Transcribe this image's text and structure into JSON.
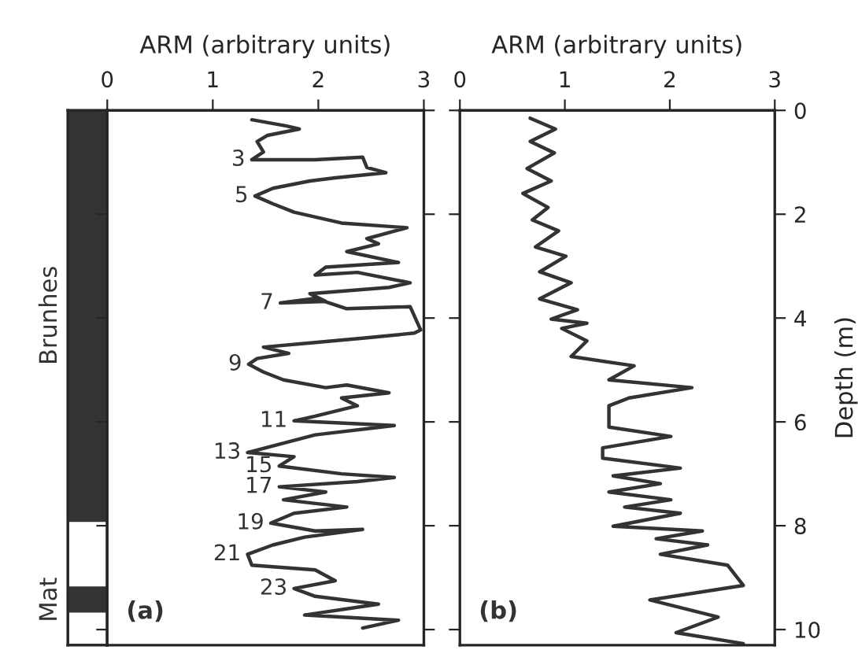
{
  "chart_data": [
    {
      "type": "bar",
      "stacked": true,
      "categories": [
        null
      ],
      "ylim": [
        10.3,
        0
      ],
      "tick_labels": false,
      "series": [
        {
          "name": "Brunhes",
          "color": "#333333",
          "values": [
            7.9
          ]
        },
        {
          "color": "#ffffff",
          "values": [
            1.3
          ]
        },
        {
          "name": "Mat",
          "color": "#333333",
          "values": [
            0.45
          ]
        },
        {
          "color": "#ffffff",
          "values": [
            0.65
          ]
        }
      ]
    },
    {
      "type": "line",
      "xlabel": "ARM (arbitrary units)",
      "xlim": [
        0,
        3
      ],
      "xticks": [
        0,
        1,
        2,
        3
      ],
      "ylim": [
        10.3,
        0
      ],
      "yticks": [
        0,
        2,
        4,
        6,
        8,
        10
      ],
      "tick_labels": "x",
      "line_style": "solid",
      "marker": "none",
      "series": [
        {
          "color": "#333333",
          "x": [
            1.37,
            1.7,
            1.82,
            1.52,
            1.42,
            1.48,
            1.37,
            1.97,
            2.42,
            2.46,
            2.64,
            2.16,
            1.92,
            1.57,
            1.4,
            1.57,
            1.77,
            2.22,
            2.84,
            2.46,
            2.57,
            2.27,
            2.76,
            2.07,
            1.97,
            2.37,
            2.87,
            2.67,
            1.92,
            2.07,
            1.64,
            1.97,
            2.27,
            2.87,
            2.97,
            2.91,
            2.46,
            1.97,
            1.48,
            1.72,
            1.42,
            1.34,
            1.48,
            1.67,
            2.07,
            2.27,
            2.67,
            2.22,
            2.37,
            1.97,
            1.77,
            2.72,
            1.97,
            1.33,
            1.77,
            1.63,
            2.22,
            2.72,
            2.37,
            1.63,
            2.07,
            1.67,
            2.27,
            1.77,
            1.55,
            1.97,
            2.42,
            1.87,
            1.57,
            1.33,
            1.37,
            1.97,
            2.16,
            1.77,
            1.97,
            2.57,
            1.87,
            2.76,
            2.42
          ],
          "values": [
            0.18,
            0.3,
            0.36,
            0.48,
            0.6,
            0.8,
            0.95,
            0.95,
            0.9,
            1.1,
            1.2,
            1.3,
            1.36,
            1.5,
            1.65,
            1.8,
            1.96,
            2.17,
            2.26,
            2.47,
            2.57,
            2.72,
            2.93,
            3.02,
            3.17,
            3.12,
            3.32,
            3.41,
            3.53,
            3.68,
            3.71,
            3.62,
            3.82,
            3.78,
            4.23,
            4.29,
            4.38,
            4.47,
            4.56,
            4.68,
            4.78,
            4.89,
            5.04,
            5.19,
            5.34,
            5.29,
            5.44,
            5.54,
            5.69,
            5.89,
            5.98,
            6.07,
            6.25,
            6.59,
            6.67,
            6.85,
            7.0,
            7.07,
            7.15,
            7.25,
            7.35,
            7.5,
            7.64,
            7.76,
            7.95,
            8.1,
            8.07,
            8.22,
            8.37,
            8.55,
            8.76,
            8.85,
            9.06,
            9.21,
            9.36,
            9.51,
            9.72,
            9.82,
            9.97
          ]
        }
      ],
      "annotations": [
        {
          "text": "3",
          "x": 1.37,
          "y": 0.95
        },
        {
          "text": "5",
          "x": 1.4,
          "y": 1.65
        },
        {
          "text": "7",
          "x": 1.64,
          "y": 3.71
        },
        {
          "text": "9",
          "x": 1.34,
          "y": 4.89
        },
        {
          "text": "11",
          "x": 1.77,
          "y": 5.98
        },
        {
          "text": "13",
          "x": 1.33,
          "y": 6.59
        },
        {
          "text": "15",
          "x": 1.63,
          "y": 6.85
        },
        {
          "text": "17",
          "x": 1.63,
          "y": 7.25
        },
        {
          "text": "19",
          "x": 1.55,
          "y": 7.95
        },
        {
          "text": "21",
          "x": 1.33,
          "y": 8.55
        },
        {
          "text": "23",
          "x": 1.77,
          "y": 9.21
        },
        "(a)"
      ]
    },
    {
      "type": "line",
      "xlabel": "ARM (arbitrary units)",
      "ylabel": "Depth (m)",
      "xlim": [
        0,
        3
      ],
      "xticks": [
        0,
        1,
        2,
        3
      ],
      "ylim": [
        10.3,
        0
      ],
      "yticks": [
        0,
        2,
        4,
        6,
        8,
        10
      ],
      "line_style": "solid",
      "marker": "none",
      "series": [
        {
          "color": "#333333",
          "x": [
            0.67,
            0.91,
            0.67,
            0.9,
            0.64,
            0.87,
            0.6,
            0.84,
            0.69,
            0.94,
            0.72,
            1.01,
            0.76,
            1.06,
            0.76,
            1.12,
            0.87,
            1.21,
            0.97,
            1.21,
            1.06,
            1.66,
            1.42,
            2.21,
            1.61,
            1.42,
            1.42,
            2.01,
            1.36,
            1.36,
            2.1,
            1.46,
            1.91,
            1.42,
            2.01,
            1.57,
            2.1,
            1.46,
            2.31,
            1.87,
            2.36,
            1.91,
            2.55,
            2.7,
            1.81,
            2.46,
            2.06,
            2.7
          ],
          "values": [
            0.15,
            0.36,
            0.6,
            0.82,
            1.12,
            1.36,
            1.6,
            1.87,
            2.11,
            2.32,
            2.63,
            2.81,
            3.11,
            3.32,
            3.63,
            3.84,
            4.02,
            4.1,
            4.2,
            4.44,
            4.74,
            4.92,
            5.19,
            5.34,
            5.54,
            5.69,
            6.1,
            6.28,
            6.5,
            6.7,
            6.89,
            7.04,
            7.19,
            7.35,
            7.5,
            7.64,
            7.76,
            8.01,
            8.1,
            8.25,
            8.37,
            8.55,
            8.76,
            9.15,
            9.43,
            9.76,
            10.06,
            10.27
          ]
        }
      ],
      "annotations": [
        "(b)"
      ]
    }
  ]
}
